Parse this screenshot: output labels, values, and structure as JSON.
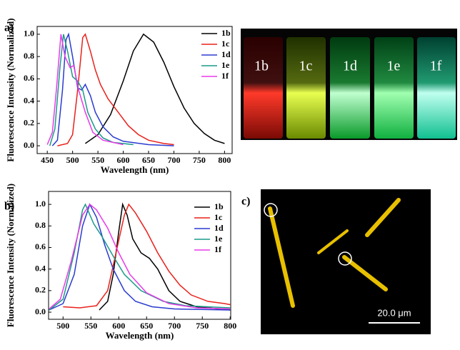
{
  "figure": {
    "panels": [
      "a)",
      "b)",
      "c)"
    ],
    "vials": [
      "1b",
      "1c",
      "1d",
      "1e",
      "1f"
    ],
    "scale_bar": "20.0 μm"
  },
  "chart_data": [
    {
      "type": "line",
      "x_label": "Wavelength (nm)",
      "y_label": "Fluorescence Intensity (Normalized)",
      "xlim": [
        430,
        815
      ],
      "ylim": [
        -0.07,
        1.07
      ],
      "xticks": [
        450,
        500,
        550,
        600,
        650,
        700,
        750,
        800
      ],
      "yticks": [
        {
          "value": 0,
          "label": "0.0"
        },
        0.2,
        0.4,
        0.6,
        0.8,
        {
          "value": 1,
          "label": "1.0"
        }
      ],
      "series": [
        {
          "name": "1b",
          "color": "#000000",
          "x": [
            525,
            550,
            575,
            600,
            620,
            640,
            660,
            680,
            700,
            720,
            740,
            760,
            780,
            800
          ],
          "values": [
            0.02,
            0.1,
            0.28,
            0.58,
            0.85,
            1.0,
            0.93,
            0.75,
            0.53,
            0.34,
            0.2,
            0.11,
            0.05,
            0.02
          ]
        },
        {
          "name": "1c",
          "color": "#e8211b",
          "x": [
            470,
            490,
            500,
            510,
            520,
            525,
            535,
            545,
            555,
            570,
            590,
            610,
            630,
            650,
            680,
            700
          ],
          "values": [
            0,
            0.02,
            0.1,
            0.5,
            0.97,
            1.0,
            0.85,
            0.68,
            0.55,
            0.42,
            0.3,
            0.18,
            0.1,
            0.05,
            0.02,
            0.01
          ]
        },
        {
          "name": "1d",
          "color": "#2a3bd0",
          "x": [
            460,
            470,
            480,
            487,
            492,
            500,
            510,
            518,
            525,
            535,
            545,
            560,
            580,
            600,
            650,
            700
          ],
          "values": [
            0,
            0.05,
            0.5,
            0.95,
            1.0,
            0.8,
            0.52,
            0.5,
            0.55,
            0.45,
            0.3,
            0.17,
            0.08,
            0.04,
            0.01,
            0
          ]
        },
        {
          "name": "1e",
          "color": "#1a9a8a",
          "x": [
            455,
            465,
            475,
            482,
            490,
            500,
            510,
            520,
            530,
            545,
            560,
            580,
            620
          ],
          "values": [
            0,
            0.15,
            0.7,
            1.0,
            0.85,
            0.62,
            0.58,
            0.5,
            0.3,
            0.15,
            0.07,
            0.03,
            0.01
          ]
        },
        {
          "name": "1f",
          "color": "#e83be8",
          "x": [
            450,
            460,
            468,
            477,
            485,
            495,
            502,
            512,
            525,
            540,
            560,
            600
          ],
          "values": [
            0.01,
            0.12,
            0.5,
            1.0,
            0.8,
            0.7,
            0.72,
            0.5,
            0.3,
            0.12,
            0.05,
            0.01
          ]
        }
      ]
    },
    {
      "type": "line",
      "x_label": "Wavelength (nm)",
      "y_label": "Fluorescence Intensity (Normalized)",
      "xlim": [
        474,
        801
      ],
      "ylim": [
        -0.066,
        1.12
      ],
      "xticks": [
        500,
        550,
        600,
        650,
        700,
        750,
        800
      ],
      "yticks": [
        {
          "value": 0,
          "label": "0.0"
        },
        0.2,
        0.4,
        0.6,
        0.8,
        {
          "value": 1,
          "label": "1.0"
        }
      ],
      "series": [
        {
          "name": "1b",
          "color": "#000000",
          "x": [
            565,
            580,
            590,
            600,
            607,
            615,
            625,
            640,
            655,
            670,
            690,
            710,
            740,
            780,
            800
          ],
          "values": [
            0.02,
            0.1,
            0.35,
            0.75,
            1.0,
            0.9,
            0.68,
            0.55,
            0.5,
            0.4,
            0.2,
            0.1,
            0.05,
            0.03,
            0.02
          ]
        },
        {
          "name": "1c",
          "color": "#e8211b",
          "x": [
            500,
            530,
            560,
            580,
            595,
            610,
            618,
            630,
            650,
            670,
            690,
            710,
            730,
            760,
            790,
            800
          ],
          "values": [
            0.05,
            0.04,
            0.06,
            0.2,
            0.55,
            0.9,
            1.0,
            0.92,
            0.75,
            0.55,
            0.38,
            0.25,
            0.16,
            0.1,
            0.08,
            0.07
          ]
        },
        {
          "name": "1d",
          "color": "#2a3bd0",
          "x": [
            475,
            500,
            520,
            535,
            548,
            560,
            575,
            590,
            610,
            630,
            660,
            700,
            800
          ],
          "values": [
            0.02,
            0.08,
            0.35,
            0.8,
            1.0,
            0.88,
            0.62,
            0.4,
            0.2,
            0.1,
            0.05,
            0.03,
            0.02
          ]
        },
        {
          "name": "1e",
          "color": "#1a9a8a",
          "x": [
            475,
            500,
            520,
            535,
            540,
            555,
            570,
            590,
            610,
            640,
            680,
            720,
            800
          ],
          "values": [
            0.02,
            0.12,
            0.55,
            0.95,
            1.0,
            0.82,
            0.7,
            0.52,
            0.35,
            0.2,
            0.1,
            0.06,
            0.04
          ]
        },
        {
          "name": "1f",
          "color": "#e83be8",
          "x": [
            475,
            495,
            515,
            535,
            548,
            560,
            580,
            600,
            620,
            650,
            690,
            740,
            800
          ],
          "values": [
            0.03,
            0.12,
            0.48,
            0.9,
            1.0,
            0.95,
            0.78,
            0.55,
            0.35,
            0.18,
            0.08,
            0.04,
            0.03
          ]
        }
      ]
    }
  ]
}
